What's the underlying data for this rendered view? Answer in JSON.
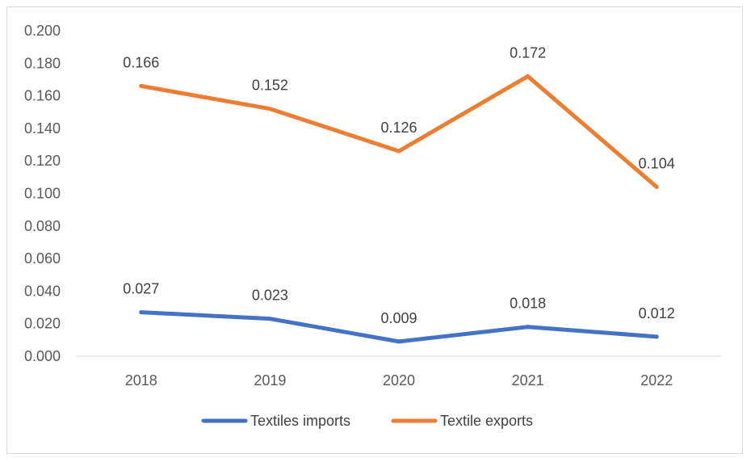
{
  "chart_data": {
    "type": "line",
    "title": "",
    "xlabel": "",
    "ylabel": "",
    "categories": [
      "2018",
      "2019",
      "2020",
      "2021",
      "2022"
    ],
    "ylim": [
      0,
      0.2
    ],
    "y_ticks": [
      "0.000",
      "0.020",
      "0.040",
      "0.060",
      "0.080",
      "0.100",
      "0.120",
      "0.140",
      "0.160",
      "0.180",
      "0.200"
    ],
    "grid": false,
    "legend_position": "bottom",
    "series": [
      {
        "name": "Textiles imports",
        "color": "#4472C4",
        "values": [
          0.027,
          0.023,
          0.009,
          0.018,
          0.012
        ],
        "labels": [
          "0.027",
          "0.023",
          "0.009",
          "0.018",
          "0.012"
        ]
      },
      {
        "name": "Textile exports",
        "color": "#ED7D31",
        "values": [
          0.166,
          0.152,
          0.126,
          0.172,
          0.104
        ],
        "labels": [
          "0.166",
          "0.152",
          "0.126",
          "0.172",
          "0.104"
        ]
      }
    ]
  }
}
